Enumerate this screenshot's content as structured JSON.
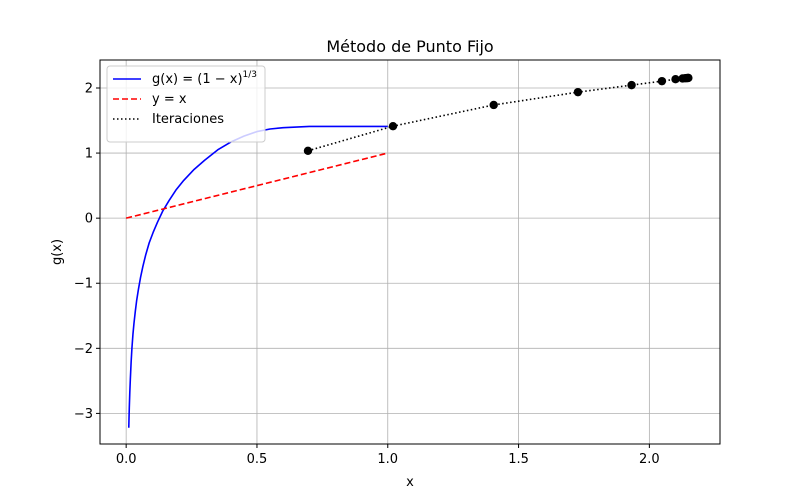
{
  "chart_data": {
    "type": "line",
    "title": "Método de Punto Fijo",
    "xlabel": "x",
    "ylabel": "g(x)",
    "xlim": [
      -0.1,
      2.27
    ],
    "ylim": [
      -3.47,
      2.43
    ],
    "x_ticks": [
      0.0,
      0.5,
      1.0,
      1.5,
      2.0
    ],
    "x_tick_labels": [
      "0.0",
      "0.5",
      "1.0",
      "1.5",
      "2.0"
    ],
    "y_ticks": [
      -3,
      -2,
      -1,
      0,
      1,
      2
    ],
    "y_tick_labels": [
      "−3",
      "−2",
      "−1",
      "0",
      "1",
      "2"
    ],
    "grid": true,
    "legend_placement": "upper-left",
    "series": [
      {
        "name": "g(x) = (1 − x)^{1/3}",
        "style": "solid",
        "color": "#0000ff",
        "x": [
          0.01,
          0.011,
          0.012,
          0.014,
          0.016,
          0.019,
          0.022,
          0.026,
          0.03,
          0.035,
          0.04,
          0.047,
          0.055,
          0.064,
          0.075,
          0.088,
          0.103,
          0.12,
          0.14,
          0.164,
          0.19,
          0.22,
          0.26,
          0.3,
          0.35,
          0.4,
          0.45,
          0.5,
          0.55,
          0.6,
          0.65,
          0.7,
          0.75,
          0.8,
          0.85,
          0.9,
          0.95,
          1.0
        ],
        "y": [
          -3.22,
          -3.06,
          -2.91,
          -2.67,
          -2.47,
          -2.21,
          -2.0,
          -1.78,
          -1.61,
          -1.43,
          -1.27,
          -1.09,
          -0.91,
          -0.74,
          -0.56,
          -0.38,
          -0.22,
          -0.06,
          0.11,
          0.27,
          0.43,
          0.58,
          0.75,
          0.89,
          1.05,
          1.17,
          1.26,
          1.33,
          1.37,
          1.39,
          1.4,
          1.41,
          1.41,
          1.41,
          1.41,
          1.41,
          1.41,
          1.41
        ]
      },
      {
        "name": "y = x",
        "style": "dashed",
        "color": "#ff0000",
        "x": [
          0.0,
          1.0
        ],
        "y": [
          0.0,
          1.0
        ]
      },
      {
        "name": "Iteraciones",
        "style": "dotted",
        "color": "#000000",
        "marker_color": "#000000",
        "x": [
          0.695,
          1.02,
          1.405,
          1.727,
          1.932,
          2.048,
          2.1,
          2.127,
          2.137,
          2.142,
          2.146,
          2.148,
          2.149
        ],
        "y": [
          1.035,
          1.413,
          1.739,
          1.936,
          2.044,
          2.105,
          2.135,
          2.146,
          2.15,
          2.152,
          2.153,
          2.154,
          2.155
        ]
      }
    ],
    "legend": [
      {
        "label_main": "g(x) = (1 − x)",
        "label_sup": "1/3",
        "style": "solid",
        "color": "#0000ff"
      },
      {
        "label_main": "y = x",
        "label_sup": "",
        "style": "dashed",
        "color": "#ff0000"
      },
      {
        "label_main": "Iteraciones",
        "label_sup": "",
        "style": "dotted",
        "color": "#000000"
      }
    ]
  }
}
